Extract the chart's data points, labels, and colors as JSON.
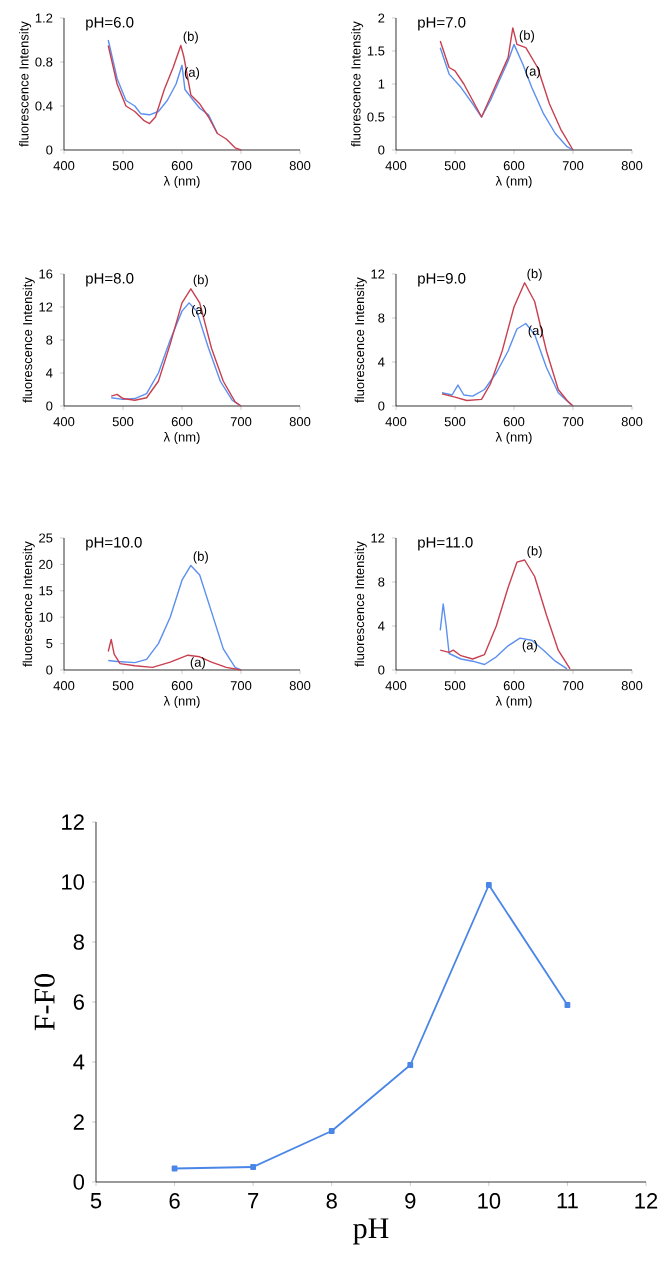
{
  "chart_data": [
    {
      "type": "line",
      "title": "pH=6.0",
      "xlabel": "λ (nm)",
      "ylabel": "fluorescence Intensity",
      "xlim": [
        400,
        800
      ],
      "xticks": [
        400,
        500,
        600,
        700,
        800
      ],
      "ylim": [
        0,
        1.2
      ],
      "yticks": [
        0,
        0.4,
        0.8,
        1.2
      ],
      "marker": "none",
      "series": [
        {
          "color": "#5b8ff0",
          "x": [
            475,
            490,
            505,
            520,
            530,
            545,
            560,
            575,
            590,
            600,
            605,
            615,
            630,
            645,
            660
          ],
          "values": [
            1.0,
            0.65,
            0.45,
            0.4,
            0.33,
            0.32,
            0.35,
            0.45,
            0.6,
            0.77,
            0.55,
            0.48,
            0.38,
            0.32,
            0.15
          ]
        },
        {
          "color": "#c8404f",
          "x": [
            475,
            490,
            505,
            520,
            535,
            545,
            555,
            570,
            585,
            598,
            603,
            615,
            630,
            645,
            660,
            675,
            690,
            700
          ],
          "values": [
            0.95,
            0.6,
            0.4,
            0.35,
            0.27,
            0.24,
            0.3,
            0.55,
            0.75,
            0.95,
            0.85,
            0.5,
            0.42,
            0.3,
            0.15,
            0.1,
            0.02,
            0
          ]
        }
      ],
      "annotations": [
        {
          "text": "(a)",
          "x": 600,
          "y": 0.77
        },
        {
          "text": "(b)",
          "x": 598,
          "y": 0.95
        }
      ]
    },
    {
      "type": "line",
      "title": "pH=7.0",
      "xlabel": "λ (nm)",
      "ylabel": "fluorescence Intensity",
      "xlim": [
        400,
        800
      ],
      "xticks": [
        400,
        500,
        600,
        700,
        800
      ],
      "ylim": [
        0,
        2
      ],
      "yticks": [
        0,
        0.5,
        1,
        1.5,
        2
      ],
      "marker": "none",
      "series": [
        {
          "color": "#5b8ff0",
          "x": [
            475,
            490,
            510,
            530,
            545,
            560,
            575,
            590,
            600,
            615,
            630,
            650,
            670,
            690,
            700
          ],
          "values": [
            1.55,
            1.15,
            0.95,
            0.7,
            0.5,
            0.75,
            1.05,
            1.35,
            1.6,
            1.3,
            0.95,
            0.55,
            0.25,
            0.05,
            0
          ]
        },
        {
          "color": "#c8404f",
          "x": [
            475,
            490,
            500,
            515,
            530,
            545,
            560,
            575,
            590,
            598,
            605,
            620,
            640,
            660,
            680,
            700
          ],
          "values": [
            1.65,
            1.25,
            1.2,
            1.0,
            0.75,
            0.5,
            0.8,
            1.1,
            1.4,
            1.85,
            1.6,
            1.55,
            1.25,
            0.7,
            0.3,
            0
          ]
        }
      ],
      "annotations": [
        {
          "text": "(a)",
          "x": 615,
          "y": 1.3
        },
        {
          "text": "(b)",
          "x": 605,
          "y": 1.6
        }
      ]
    },
    {
      "type": "line",
      "title": "pH=8.0",
      "xlabel": "λ (nm)",
      "ylabel": "fluorescence Intensity",
      "xlim": [
        400,
        800
      ],
      "xticks": [
        400,
        500,
        600,
        700,
        800
      ],
      "ylim": [
        0,
        16
      ],
      "yticks": [
        0,
        4,
        8,
        12,
        16
      ],
      "marker": "none",
      "series": [
        {
          "color": "#5b8ff0",
          "x": [
            480,
            500,
            520,
            540,
            560,
            580,
            600,
            612,
            625,
            645,
            665,
            685,
            700
          ],
          "values": [
            1.0,
            0.8,
            0.9,
            1.5,
            4,
            8,
            11.5,
            12.5,
            11.5,
            7,
            3,
            0.7,
            0
          ]
        },
        {
          "color": "#c8404f",
          "x": [
            480,
            490,
            500,
            520,
            540,
            560,
            580,
            600,
            615,
            630,
            650,
            670,
            690,
            700
          ],
          "values": [
            1.2,
            1.4,
            0.9,
            0.7,
            1.0,
            3,
            7.5,
            12.5,
            14.2,
            12.5,
            7,
            3,
            0.5,
            0
          ]
        }
      ],
      "annotations": [
        {
          "text": "(a)",
          "x": 612,
          "y": 12.5
        },
        {
          "text": "(b)",
          "x": 615,
          "y": 14.2
        }
      ]
    },
    {
      "type": "line",
      "title": "pH=9.0",
      "xlabel": "λ (nm)",
      "ylabel": "fluorescence Intensity",
      "xlim": [
        400,
        800
      ],
      "xticks": [
        400,
        500,
        600,
        700,
        800
      ],
      "ylim": [
        0,
        12
      ],
      "yticks": [
        0,
        4,
        8,
        12
      ],
      "marker": "none",
      "series": [
        {
          "color": "#5b8ff0",
          "x": [
            478,
            495,
            505,
            515,
            530,
            550,
            570,
            590,
            605,
            620,
            635,
            655,
            675,
            695,
            700
          ],
          "values": [
            1.2,
            1.0,
            1.9,
            1.0,
            0.9,
            1.5,
            3,
            5,
            7,
            7.5,
            6.5,
            3.5,
            1.2,
            0.2,
            0
          ]
        },
        {
          "color": "#c8404f",
          "x": [
            478,
            500,
            520,
            545,
            560,
            580,
            600,
            618,
            635,
            655,
            675,
            690,
            700
          ],
          "values": [
            1.1,
            0.8,
            0.5,
            0.6,
            2,
            5,
            9,
            11.2,
            9.5,
            5,
            1.5,
            0.5,
            0
          ]
        }
      ],
      "annotations": [
        {
          "text": "(a)",
          "x": 620,
          "y": 7.5
        },
        {
          "text": "(b)",
          "x": 618,
          "y": 11.2
        }
      ]
    },
    {
      "type": "line",
      "title": "pH=10.0",
      "xlabel": "λ (nm)",
      "ylabel": "fluorescence Intensity",
      "xlim": [
        400,
        800
      ],
      "xticks": [
        400,
        500,
        600,
        700,
        800
      ],
      "ylim": [
        0,
        25
      ],
      "yticks": [
        0,
        5,
        10,
        15,
        20,
        25
      ],
      "marker": "none",
      "series": [
        {
          "color": "#5b8ff0",
          "x": [
            475,
            490,
            520,
            540,
            560,
            580,
            600,
            615,
            630,
            650,
            670,
            690,
            700
          ],
          "values": [
            1.8,
            1.6,
            1.4,
            2,
            5,
            10,
            17,
            19.8,
            18,
            11,
            4,
            0.5,
            0
          ]
        },
        {
          "color": "#c8404f",
          "x": [
            475,
            480,
            485,
            495,
            520,
            550,
            580,
            610,
            630,
            650,
            675,
            700
          ],
          "values": [
            3.5,
            5.8,
            3,
            1.2,
            0.8,
            0.5,
            1.5,
            2.8,
            2.5,
            1.5,
            0.5,
            0
          ]
        }
      ],
      "annotations": [
        {
          "text": "(a)",
          "x": 610,
          "y": 2.8
        },
        {
          "text": "(b)",
          "x": 615,
          "y": 19.8
        }
      ]
    },
    {
      "type": "line",
      "title": "pH=11.0",
      "xlabel": "λ (nm)",
      "ylabel": "fluorescence Intensity",
      "xlim": [
        400,
        800
      ],
      "xticks": [
        400,
        500,
        600,
        700,
        800
      ],
      "ylim": [
        0,
        12
      ],
      "yticks": [
        0,
        4,
        8,
        12
      ],
      "marker": "none",
      "series": [
        {
          "color": "#5b8ff0",
          "x": [
            475,
            480,
            485,
            490,
            510,
            530,
            550,
            570,
            590,
            610,
            630,
            650,
            670,
            690
          ],
          "values": [
            3.6,
            6,
            4,
            1.5,
            1,
            0.8,
            0.5,
            1.2,
            2.2,
            2.9,
            2.7,
            1.8,
            0.8,
            0.1
          ]
        },
        {
          "color": "#c8404f",
          "x": [
            475,
            490,
            497,
            510,
            530,
            550,
            570,
            590,
            605,
            618,
            635,
            655,
            675,
            695
          ],
          "values": [
            1.8,
            1.6,
            1.8,
            1.3,
            1.0,
            1.4,
            4,
            7.5,
            9.8,
            10,
            8.5,
            5,
            1.8,
            0.1
          ]
        }
      ],
      "annotations": [
        {
          "text": "(a)",
          "x": 610,
          "y": 2.9
        },
        {
          "text": "(b)",
          "x": 618,
          "y": 10
        }
      ]
    },
    {
      "type": "line",
      "xlabel": "pH",
      "ylabel": "F-F0",
      "xlim": [
        5,
        12
      ],
      "xticks": [
        5,
        6,
        7,
        8,
        9,
        10,
        11,
        12
      ],
      "ylim": [
        0,
        12
      ],
      "yticks": [
        0,
        2,
        4,
        6,
        8,
        10,
        12
      ],
      "marker": "square",
      "series": [
        {
          "color": "#4a86e8",
          "x": [
            6,
            7,
            8,
            9,
            10,
            11
          ],
          "values": [
            0.45,
            0.5,
            1.7,
            3.9,
            9.9,
            5.9
          ]
        }
      ]
    }
  ]
}
